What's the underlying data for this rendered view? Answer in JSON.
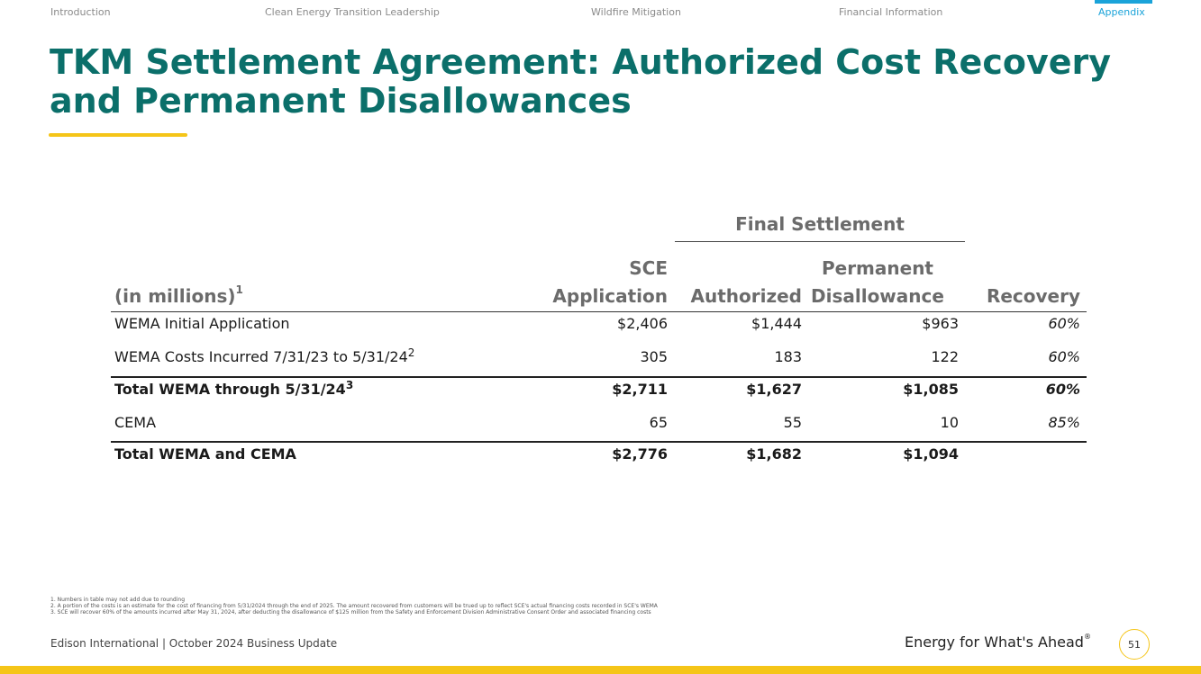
{
  "nav": {
    "items": [
      "Introduction",
      "Clean Energy Transition Leadership",
      "Wildfire Mitigation",
      "Financial Information",
      "Appendix"
    ],
    "active": "Appendix"
  },
  "title": "TKM Settlement Agreement: Authorized Cost Recovery and Permanent Disallowances",
  "table": {
    "group_header": "Final Settlement",
    "col_label": "(in millions)",
    "col_label_sup": "1",
    "sce_line1": "SCE",
    "sce_line2": "Application",
    "authorized": "Authorized",
    "perm_line1": "Permanent",
    "perm_line2": "Disallowance",
    "recovery": "Recovery",
    "rows": [
      {
        "label": "WEMA Initial Application",
        "sup": "",
        "sce": "$2,406",
        "authorized": "$1,444",
        "disallowance": "$963",
        "recovery": "60%"
      },
      {
        "label": "WEMA Costs Incurred 7/31/23 to 5/31/24",
        "sup": "2",
        "sce": "305",
        "authorized": "183",
        "disallowance": "122",
        "recovery": "60%"
      },
      {
        "label": "Total WEMA through 5/31/24",
        "sup": "3",
        "sce": "$2,711",
        "authorized": "$1,627",
        "disallowance": "$1,085",
        "recovery": "60%"
      },
      {
        "label": "CEMA",
        "sup": "",
        "sce": "65",
        "authorized": "55",
        "disallowance": "10",
        "recovery": "85%"
      },
      {
        "label": "Total WEMA and CEMA",
        "sup": "",
        "sce": "$2,776",
        "authorized": "$1,682",
        "disallowance": "$1,094",
        "recovery": ""
      }
    ]
  },
  "footnotes": [
    "1.  Numbers in table may not add due to rounding",
    "2.  A portion of the costs is an estimate for the cost of financing from 5/31/2024 through the end of 2025. The amount recovered from customers will be trued up to reflect SCE's actual financing costs recorded in SCE's WEMA",
    "3.  SCE will recover 60% of the amounts incurred after May 31, 2024, after deducting the disallowance of $125 million from the Safety and Enforcement Division Administrative Consent Order and associated financing costs"
  ],
  "footer": {
    "left": "Edison International |  October 2024 Business Update",
    "tagline": "Energy for What's Ahead",
    "tagline_mark": "®",
    "page": "51"
  },
  "colors": {
    "title": "#0b6f6a",
    "accent": "#f5c518",
    "nav_active": "#1aa3d9"
  }
}
